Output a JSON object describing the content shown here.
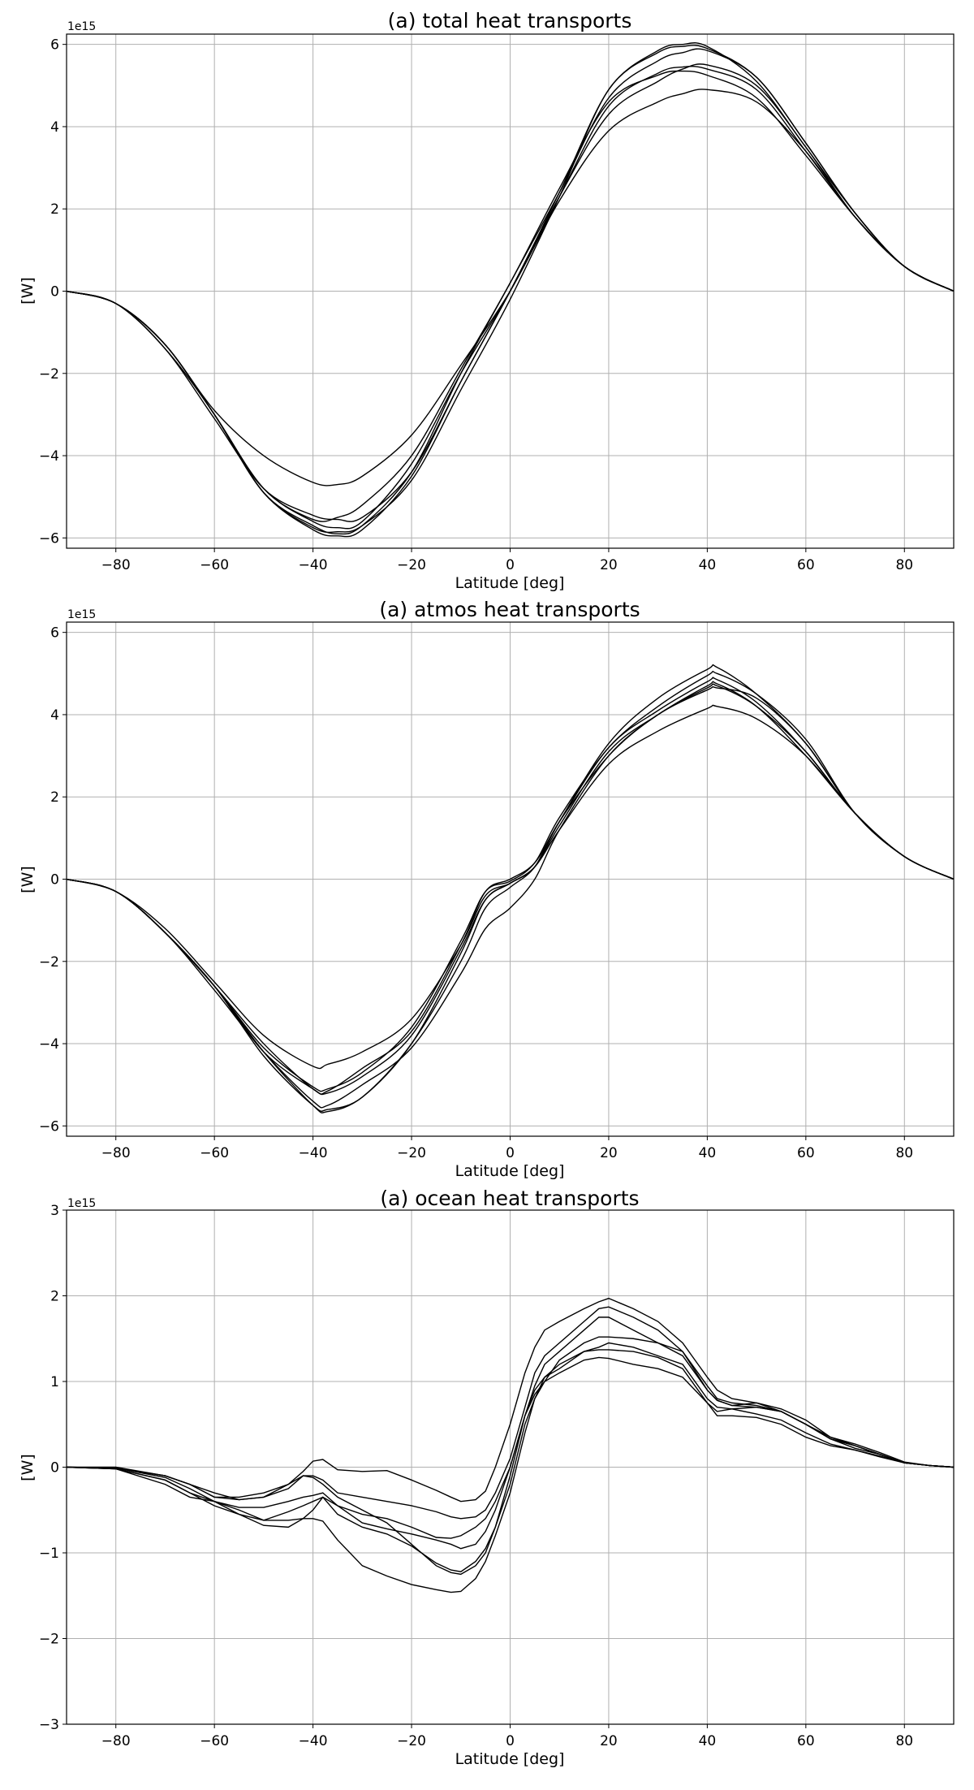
{
  "chart_data": [
    {
      "type": "line",
      "title": "(a) total heat transports",
      "xlabel": "Latitude [deg]",
      "ylabel": "[W]",
      "offset_label": "1e15",
      "xlim": [
        -90,
        90
      ],
      "ylim": [
        -6.25,
        6.25
      ],
      "xticks": [
        -80,
        -60,
        -40,
        -20,
        0,
        20,
        40,
        60,
        80
      ],
      "yticks": [
        -6,
        -4,
        -2,
        0,
        2,
        4,
        6
      ],
      "grid": true,
      "line_color": "#000000",
      "x": [
        -90,
        -80,
        -70,
        -60,
        -50,
        -40,
        -35,
        -30,
        -20,
        -10,
        0,
        10,
        20,
        30,
        35,
        40,
        50,
        60,
        70,
        80,
        90
      ],
      "series": [
        {
          "values": [
            0,
            -0.3,
            -1.3,
            -3.0,
            -4.9,
            -5.8,
            -5.95,
            -5.8,
            -4.5,
            -2.2,
            0,
            2.4,
            4.9,
            5.85,
            6.0,
            5.95,
            5.1,
            3.5,
            1.9,
            0.6,
            0
          ]
        },
        {
          "values": [
            0,
            -0.3,
            -1.3,
            -3.0,
            -4.9,
            -5.7,
            -5.9,
            -5.7,
            -4.4,
            -2.0,
            0.2,
            2.4,
            4.7,
            5.6,
            5.8,
            5.85,
            5.2,
            3.6,
            1.9,
            0.6,
            0
          ]
        },
        {
          "values": [
            0,
            -0.3,
            -1.3,
            -3.0,
            -4.8,
            -5.6,
            -5.75,
            -5.6,
            -4.2,
            -2.0,
            0,
            2.3,
            4.5,
            5.3,
            5.45,
            5.4,
            4.9,
            3.4,
            1.8,
            0.6,
            0
          ]
        },
        {
          "values": [
            0,
            -0.3,
            -1.4,
            -3.1,
            -4.8,
            -5.45,
            -5.55,
            -5.5,
            -4.4,
            -2.2,
            0,
            2.3,
            4.3,
            5.1,
            5.4,
            5.5,
            5.0,
            3.5,
            1.8,
            0.6,
            0
          ]
        },
        {
          "values": [
            0,
            -0.3,
            -1.3,
            -3.0,
            -4.8,
            -5.55,
            -5.5,
            -5.2,
            -4.0,
            -1.9,
            0.2,
            2.5,
            4.6,
            5.25,
            5.35,
            5.25,
            4.7,
            3.3,
            1.8,
            0.6,
            0
          ]
        },
        {
          "values": [
            0,
            -0.3,
            -1.3,
            -2.9,
            -4.0,
            -4.65,
            -4.7,
            -4.5,
            -3.5,
            -1.8,
            0,
            2.2,
            3.9,
            4.6,
            4.8,
            4.9,
            4.6,
            3.4,
            1.8,
            0.6,
            0
          ]
        },
        {
          "values": [
            0,
            -0.3,
            -1.4,
            -3.0,
            -4.9,
            -5.75,
            -5.85,
            -5.7,
            -4.6,
            -2.4,
            -0.2,
            2.3,
            4.9,
            5.8,
            5.95,
            5.9,
            5.2,
            3.6,
            1.9,
            0.6,
            0
          ]
        }
      ]
    },
    {
      "type": "line",
      "title": "(a) atmos heat transports",
      "xlabel": "Latitude [deg]",
      "ylabel": "[W]",
      "offset_label": "1e15",
      "xlim": [
        -90,
        90
      ],
      "ylim": [
        -6.25,
        6.25
      ],
      "xticks": [
        -80,
        -60,
        -40,
        -20,
        0,
        20,
        40,
        60,
        80
      ],
      "yticks": [
        -6,
        -4,
        -2,
        0,
        2,
        4,
        6
      ],
      "grid": true,
      "line_color": "#000000",
      "x": [
        -90,
        -80,
        -70,
        -60,
        -50,
        -40,
        -37,
        -30,
        -20,
        -10,
        -5,
        0,
        5,
        10,
        20,
        30,
        40,
        42,
        50,
        60,
        70,
        80,
        90
      ],
      "series": [
        {
          "values": [
            0,
            -0.3,
            -1.3,
            -2.6,
            -4.3,
            -5.5,
            -5.6,
            -5.3,
            -4.0,
            -1.8,
            -0.5,
            -0.1,
            0.3,
            1.4,
            3.3,
            4.4,
            5.1,
            5.15,
            4.5,
            3.3,
            1.6,
            0.55,
            0
          ]
        },
        {
          "values": [
            0,
            -0.3,
            -1.2,
            -2.5,
            -3.8,
            -4.55,
            -4.5,
            -4.2,
            -3.4,
            -1.6,
            -0.4,
            -0.1,
            0.3,
            1.2,
            2.8,
            3.6,
            4.15,
            4.2,
            3.9,
            3.0,
            1.6,
            0.55,
            0
          ]
        },
        {
          "values": [
            0,
            -0.3,
            -1.3,
            -2.6,
            -4.0,
            -5.1,
            -5.15,
            -4.6,
            -3.7,
            -1.6,
            -0.3,
            0,
            0.4,
            1.4,
            3.2,
            4.1,
            4.8,
            4.85,
            4.3,
            3.1,
            1.6,
            0.55,
            0
          ]
        },
        {
          "values": [
            0,
            -0.3,
            -1.3,
            -2.7,
            -4.2,
            -5.4,
            -5.5,
            -5.0,
            -4.1,
            -2.3,
            -1.2,
            -0.7,
            0,
            1.2,
            3.0,
            4.0,
            4.65,
            4.7,
            4.2,
            3.1,
            1.6,
            0.55,
            0
          ]
        },
        {
          "values": [
            0,
            -0.3,
            -1.3,
            -2.6,
            -4.2,
            -5.5,
            -5.65,
            -5.3,
            -4.0,
            -2.0,
            -0.7,
            -0.2,
            0.3,
            1.4,
            3.0,
            4.0,
            4.6,
            4.65,
            4.4,
            3.3,
            1.6,
            0.55,
            0
          ]
        },
        {
          "values": [
            0,
            -0.3,
            -1.3,
            -2.6,
            -4.1,
            -5.05,
            -5.1,
            -4.7,
            -3.6,
            -1.5,
            -0.3,
            -0.05,
            0.4,
            1.5,
            3.2,
            4.2,
            4.95,
            5.0,
            4.5,
            3.4,
            1.6,
            0.55,
            0
          ]
        },
        {
          "values": [
            0,
            -0.3,
            -1.3,
            -2.6,
            -4.2,
            -5.1,
            -5.2,
            -4.8,
            -3.8,
            -1.7,
            -0.5,
            -0.1,
            0.3,
            1.3,
            3.1,
            4.0,
            4.7,
            4.75,
            4.2,
            3.0,
            1.6,
            0.55,
            0
          ]
        }
      ]
    },
    {
      "type": "line",
      "title": "(a) ocean heat transports",
      "xlabel": "Latitude [deg]",
      "ylabel": "[W]",
      "offset_label": "1e15",
      "xlim": [
        -90,
        90
      ],
      "ylim": [
        -3,
        3
      ],
      "xticks": [
        -80,
        -60,
        -40,
        -20,
        0,
        20,
        40,
        60,
        80
      ],
      "yticks": [
        -3,
        -2,
        -1,
        0,
        1,
        2,
        3
      ],
      "grid": true,
      "line_color": "#000000",
      "x": [
        -90,
        -80,
        -70,
        -65,
        -60,
        -55,
        -50,
        -45,
        -42,
        -40,
        -38,
        -35,
        -30,
        -25,
        -20,
        -15,
        -12,
        -10,
        -7,
        -5,
        -3,
        0,
        3,
        5,
        7,
        10,
        15,
        18,
        20,
        25,
        30,
        35,
        40,
        42,
        45,
        50,
        55,
        60,
        65,
        70,
        75,
        80,
        85,
        90
      ],
      "series": [
        {
          "values": [
            0,
            0,
            -0.1,
            -0.2,
            -0.35,
            -0.35,
            -0.3,
            -0.2,
            -0.05,
            0.07,
            0.09,
            -0.03,
            -0.05,
            -0.04,
            -0.15,
            -0.27,
            -0.35,
            -0.4,
            -0.38,
            -0.28,
            0.0,
            0.5,
            1.1,
            1.4,
            1.6,
            1.7,
            1.85,
            1.93,
            1.97,
            1.85,
            1.7,
            1.45,
            1.05,
            0.9,
            0.8,
            0.75,
            0.65,
            0.5,
            0.35,
            0.25,
            0.15,
            0.05,
            0.02,
            0
          ]
        },
        {
          "values": [
            0,
            -0.01,
            -0.1,
            -0.2,
            -0.35,
            -0.38,
            -0.35,
            -0.2,
            -0.1,
            -0.1,
            -0.15,
            -0.3,
            -0.35,
            -0.4,
            -0.45,
            -0.52,
            -0.58,
            -0.6,
            -0.58,
            -0.5,
            -0.3,
            0.1,
            0.7,
            1.1,
            1.3,
            1.45,
            1.7,
            1.85,
            1.87,
            1.75,
            1.6,
            1.35,
            0.95,
            0.8,
            0.75,
            0.72,
            0.65,
            0.5,
            0.33,
            0.25,
            0.15,
            0.05,
            0.02,
            0
          ]
        },
        {
          "values": [
            0,
            -0.01,
            -0.12,
            -0.25,
            -0.4,
            -0.47,
            -0.47,
            -0.4,
            -0.35,
            -0.33,
            -0.3,
            -0.45,
            -0.55,
            -0.6,
            -0.7,
            -0.82,
            -0.83,
            -0.8,
            -0.7,
            -0.6,
            -0.4,
            0.0,
            0.6,
            0.95,
            1.2,
            1.35,
            1.6,
            1.75,
            1.75,
            1.6,
            1.45,
            1.3,
            0.9,
            0.78,
            0.72,
            0.7,
            0.65,
            0.5,
            0.33,
            0.25,
            0.15,
            0.05,
            0.02,
            0
          ]
        },
        {
          "values": [
            0,
            -0.02,
            -0.15,
            -0.3,
            -0.4,
            -0.55,
            -0.68,
            -0.7,
            -0.6,
            -0.5,
            -0.35,
            -0.45,
            -0.65,
            -0.72,
            -0.78,
            -0.85,
            -0.9,
            -0.95,
            -0.9,
            -0.75,
            -0.5,
            0.0,
            0.6,
            0.9,
            1.05,
            1.2,
            1.35,
            1.4,
            1.45,
            1.4,
            1.3,
            1.2,
            0.8,
            0.7,
            0.68,
            0.7,
            0.65,
            0.5,
            0.33,
            0.22,
            0.15,
            0.05,
            0.02,
            0
          ]
        },
        {
          "values": [
            0,
            -0.02,
            -0.15,
            -0.3,
            -0.45,
            -0.55,
            -0.62,
            -0.62,
            -0.6,
            -0.6,
            -0.63,
            -0.85,
            -1.15,
            -1.27,
            -1.37,
            -1.43,
            -1.46,
            -1.45,
            -1.3,
            -1.1,
            -0.8,
            -0.3,
            0.4,
            0.8,
            1.05,
            1.15,
            1.35,
            1.37,
            1.37,
            1.35,
            1.28,
            1.15,
            0.75,
            0.65,
            0.68,
            0.62,
            0.55,
            0.4,
            0.27,
            0.2,
            0.12,
            0.05,
            0.02,
            0
          ]
        },
        {
          "values": [
            0,
            -0.01,
            -0.1,
            -0.2,
            -0.3,
            -0.38,
            -0.35,
            -0.25,
            -0.1,
            -0.12,
            -0.2,
            -0.35,
            -0.5,
            -0.65,
            -0.9,
            -1.15,
            -1.23,
            -1.25,
            -1.15,
            -1.0,
            -0.7,
            -0.1,
            0.6,
            0.85,
            1.0,
            1.1,
            1.25,
            1.28,
            1.27,
            1.2,
            1.15,
            1.05,
            0.75,
            0.6,
            0.6,
            0.58,
            0.5,
            0.35,
            0.25,
            0.2,
            0.13,
            0.05,
            0.02,
            0
          ]
        },
        {
          "values": [
            0,
            -0.02,
            -0.2,
            -0.35,
            -0.4,
            -0.5,
            -0.62,
            -0.52,
            -0.45,
            -0.4,
            -0.35,
            -0.55,
            -0.7,
            -0.78,
            -0.92,
            -1.12,
            -1.2,
            -1.22,
            -1.1,
            -0.95,
            -0.7,
            -0.2,
            0.5,
            0.8,
            1.0,
            1.25,
            1.45,
            1.52,
            1.52,
            1.5,
            1.45,
            1.35,
            0.9,
            0.78,
            0.72,
            0.75,
            0.68,
            0.55,
            0.35,
            0.27,
            0.17,
            0.06,
            0.02,
            0
          ]
        }
      ]
    }
  ]
}
